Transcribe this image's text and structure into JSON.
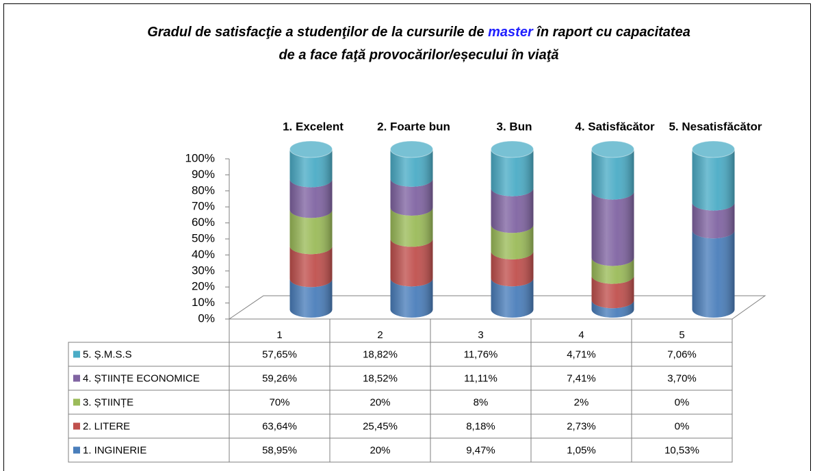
{
  "chart_data": {
    "type": "bar",
    "stacked": "percent",
    "title": {
      "parts": [
        "Gradul de satisfacţie a studenţilor de la cursurile de ",
        "master",
        " în raport cu capacitatea"
      ],
      "line2": "de a face faţă provocărilor/eșecului în viaţă"
    },
    "title_highlight_color": "#1f1fff",
    "annotations": [
      "1. Excelent",
      "2. Foarte bun",
      "3. Bun",
      "4. Satisfăcător",
      "5. Nesatisfăcător"
    ],
    "annotation_color": "#1f1fff",
    "categories": [
      "1",
      "2",
      "3",
      "4",
      "5"
    ],
    "ylim": [
      0,
      100
    ],
    "yticks": [
      {
        "value": 0,
        "label": "0%"
      },
      {
        "value": 10,
        "label": "10%"
      },
      {
        "value": 20,
        "label": "20%"
      },
      {
        "value": 30,
        "label": "30%"
      },
      {
        "value": 40,
        "label": "40%"
      },
      {
        "value": 50,
        "label": "50%"
      },
      {
        "value": 60,
        "label": "60%"
      },
      {
        "value": 70,
        "label": "70%"
      },
      {
        "value": 80,
        "label": "80%"
      },
      {
        "value": 90,
        "label": "90%"
      },
      {
        "value": 100,
        "label": "100%"
      }
    ],
    "series": [
      {
        "name": "1. INGINERIE",
        "color": "#4a7ebb",
        "values": [
          58.95,
          20,
          9.47,
          1.05,
          10.53
        ],
        "value_labels": [
          "58,95%",
          "20%",
          "9,47%",
          "1,05%",
          "10,53%"
        ]
      },
      {
        "name": "2. LITERE",
        "color": "#c0504d",
        "values": [
          63.64,
          25.45,
          8.18,
          2.73,
          0
        ],
        "value_labels": [
          "63,64%",
          "25,45%",
          "8,18%",
          "2,73%",
          "0%"
        ]
      },
      {
        "name": "3. ȘTIINȚE",
        "color": "#9bbb59",
        "values": [
          70,
          20,
          8,
          2,
          0
        ],
        "value_labels": [
          "70%",
          "20%",
          "8%",
          "2%",
          "0%"
        ]
      },
      {
        "name": "4. ȘTIINȚE ECONOMICE",
        "color": "#8064a2",
        "values": [
          59.26,
          18.52,
          11.11,
          7.41,
          3.7
        ],
        "value_labels": [
          "59,26%",
          "18,52%",
          "11,11%",
          "7,41%",
          "3,70%"
        ]
      },
      {
        "name": "5. Ș.M.S.S",
        "color": "#4bacc6",
        "values": [
          57.65,
          18.82,
          11.76,
          4.71,
          7.06
        ],
        "value_labels": [
          "57,65%",
          "18,82%",
          "11,76%",
          "4,71%",
          "7,06%"
        ]
      }
    ]
  }
}
